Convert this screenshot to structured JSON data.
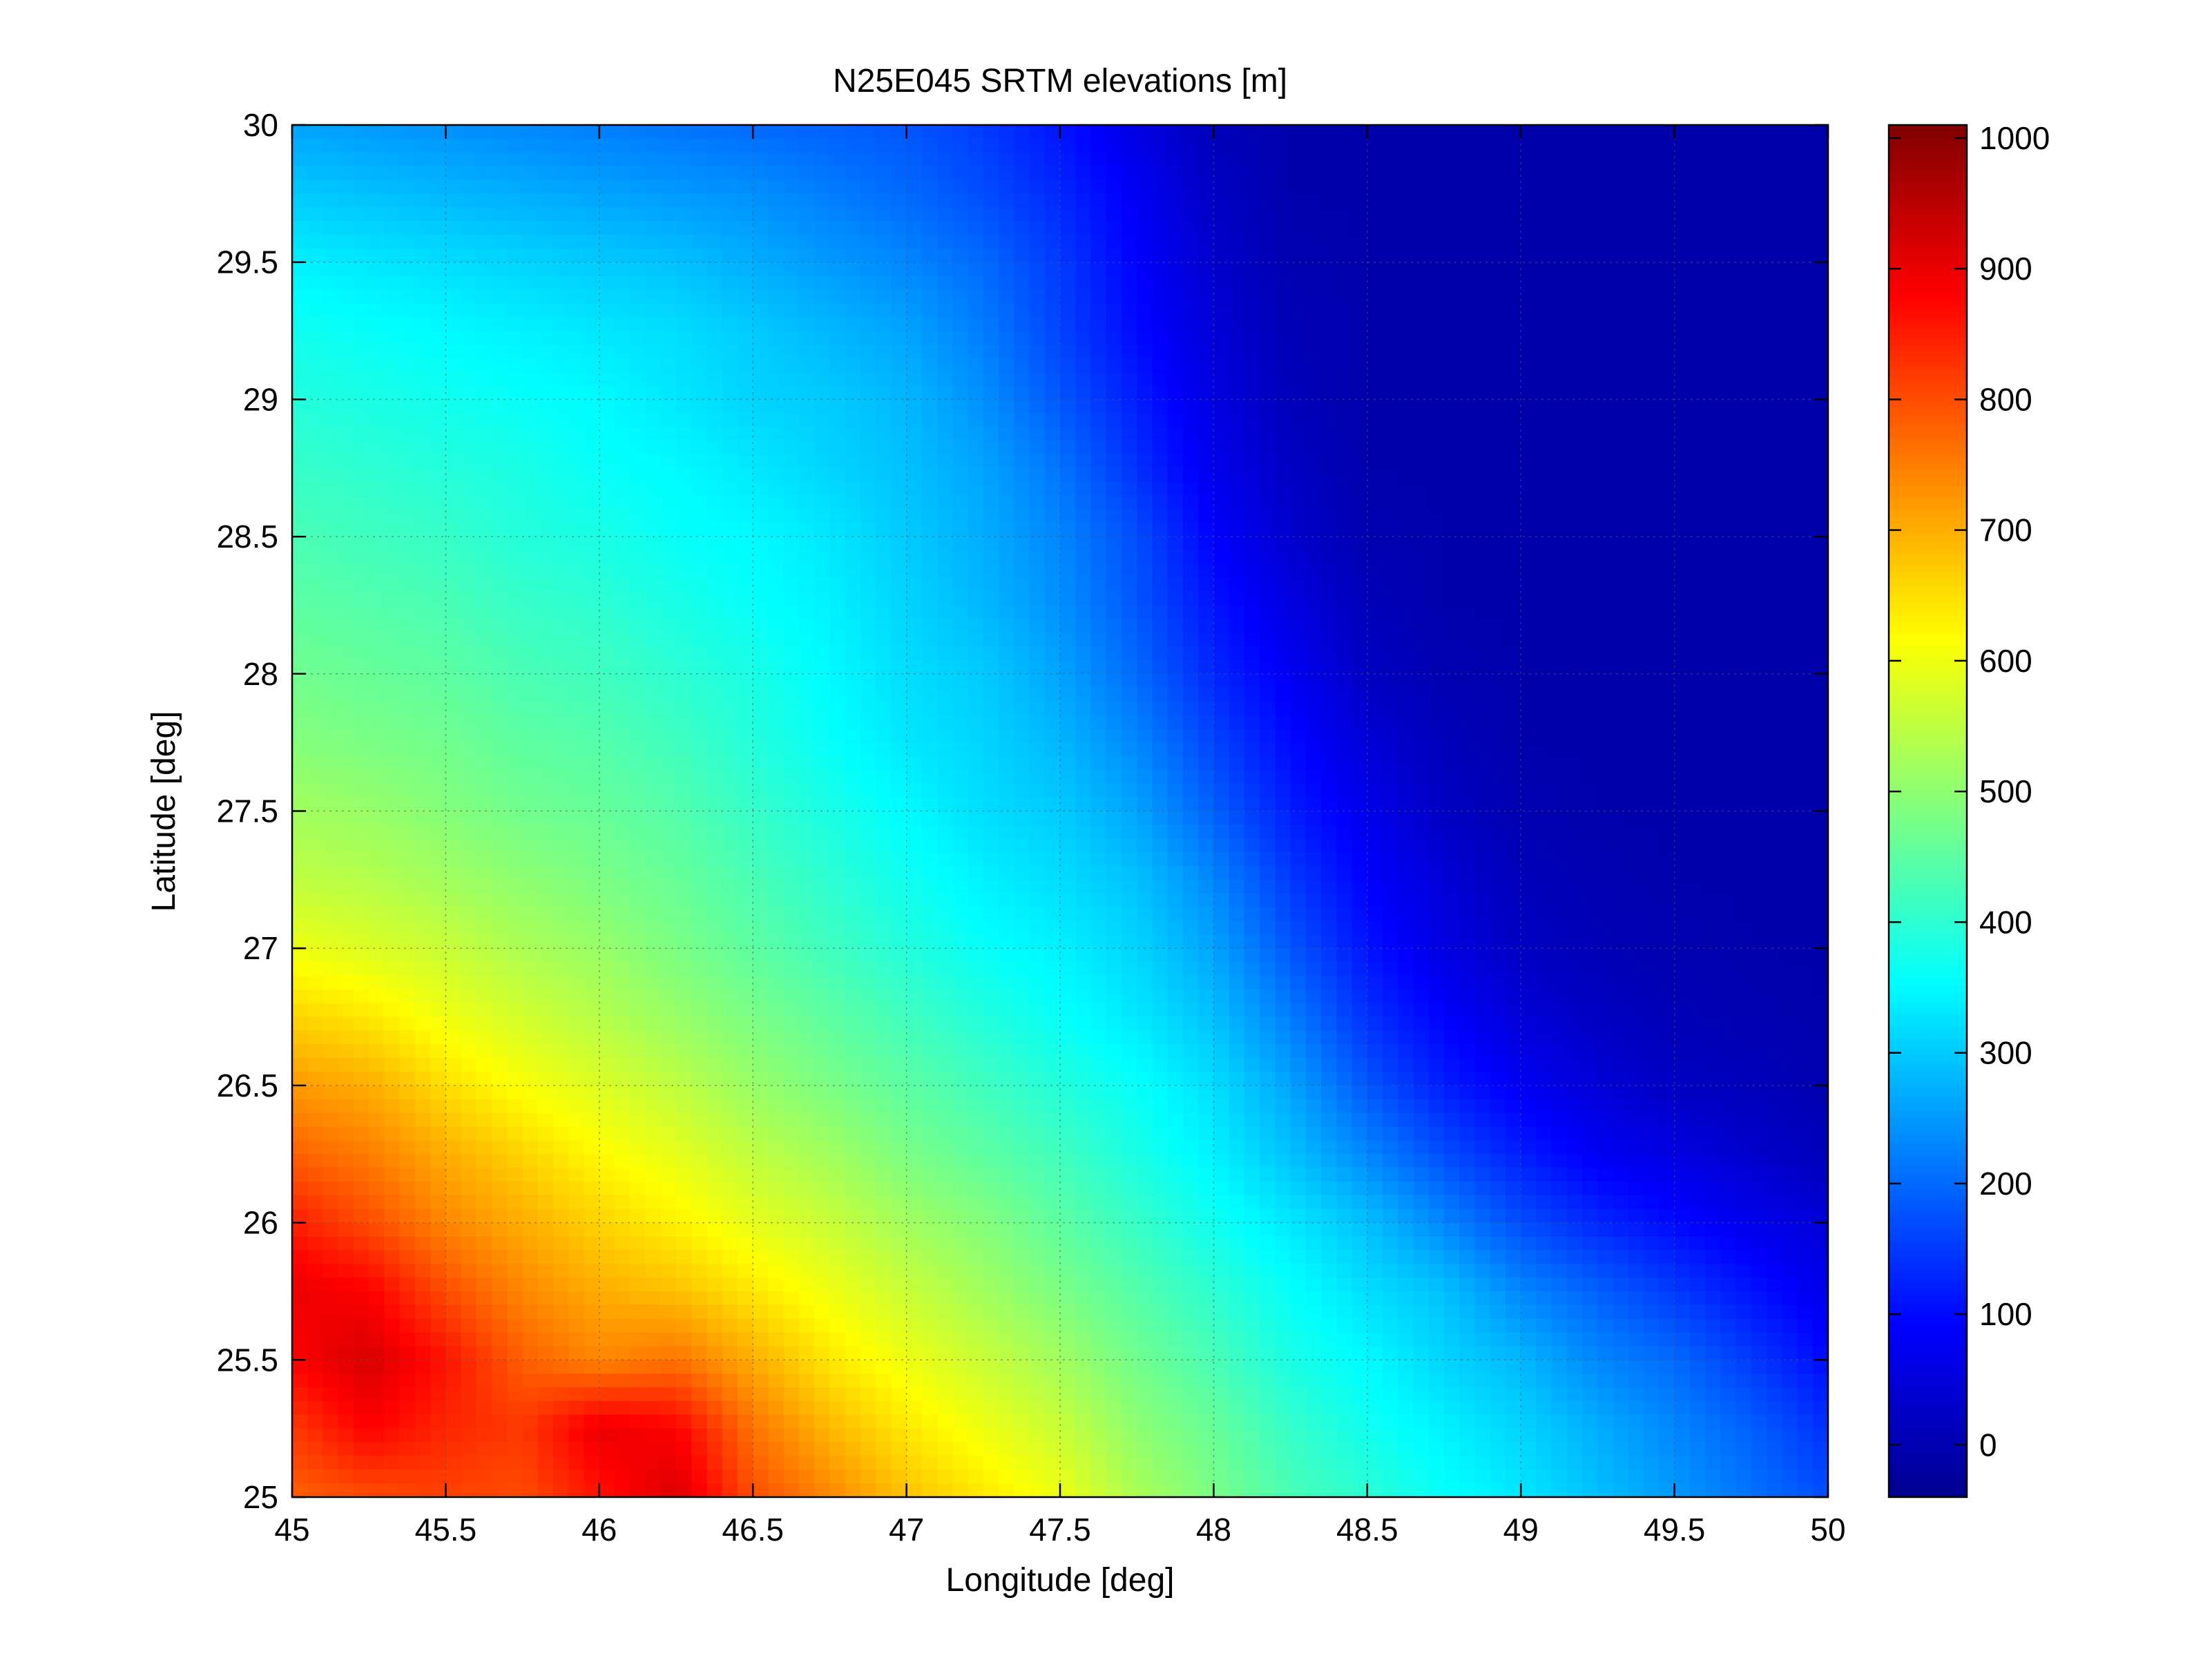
{
  "chart_data": {
    "type": "heatmap",
    "title": "N25E045 SRTM elevations [m]",
    "xlabel": "Longitude [deg]",
    "ylabel": "Latitude [deg]",
    "xlim": [
      45,
      50
    ],
    "ylim": [
      25,
      30
    ],
    "xticks": [
      "45",
      "45.5",
      "46",
      "46.5",
      "47",
      "47.5",
      "48",
      "48.5",
      "49",
      "49.5",
      "50"
    ],
    "yticks": [
      "25",
      "25.5",
      "26",
      "26.5",
      "27",
      "27.5",
      "28",
      "28.5",
      "29",
      "29.5",
      "30"
    ],
    "grid": true,
    "colormap": "jet",
    "colorbar": {
      "clim": [
        -40,
        1010
      ],
      "ticks": [
        "0",
        "100",
        "200",
        "300",
        "400",
        "500",
        "600",
        "700",
        "800",
        "900",
        "1000"
      ]
    },
    "lon": [
      45,
      45.25,
      45.5,
      45.75,
      46,
      46.25,
      46.5,
      46.75,
      47,
      47.25,
      47.5,
      47.75,
      48,
      48.25,
      48.5,
      48.75,
      49,
      49.25,
      49.5,
      49.75,
      50
    ],
    "lat": [
      30,
      29.75,
      29.5,
      29.25,
      29,
      28.75,
      28.5,
      28.25,
      28,
      27.75,
      27.5,
      27.25,
      27,
      26.75,
      26.5,
      26.25,
      26,
      25.75,
      25.5,
      25.25,
      25
    ],
    "elevation": [
      [
        260,
        250,
        240,
        230,
        220,
        210,
        200,
        190,
        180,
        150,
        110,
        60,
        20,
        5,
        5,
        5,
        5,
        5,
        5,
        5,
        5
      ],
      [
        300,
        290,
        280,
        270,
        260,
        250,
        240,
        220,
        200,
        170,
        130,
        80,
        30,
        5,
        5,
        5,
        5,
        5,
        5,
        5,
        5
      ],
      [
        340,
        330,
        320,
        310,
        300,
        290,
        270,
        250,
        230,
        200,
        150,
        90,
        40,
        10,
        5,
        5,
        5,
        5,
        5,
        5,
        5
      ],
      [
        370,
        360,
        350,
        340,
        330,
        320,
        300,
        280,
        260,
        220,
        160,
        100,
        50,
        15,
        5,
        5,
        5,
        5,
        5,
        5,
        5
      ],
      [
        390,
        380,
        370,
        360,
        350,
        330,
        310,
        300,
        280,
        240,
        180,
        120,
        60,
        20,
        5,
        5,
        5,
        5,
        5,
        5,
        5
      ],
      [
        410,
        400,
        390,
        380,
        360,
        350,
        330,
        310,
        290,
        260,
        210,
        140,
        70,
        30,
        5,
        5,
        5,
        5,
        5,
        5,
        5
      ],
      [
        430,
        420,
        410,
        390,
        380,
        360,
        350,
        330,
        300,
        270,
        230,
        170,
        90,
        40,
        10,
        5,
        5,
        5,
        5,
        5,
        5
      ],
      [
        450,
        440,
        430,
        410,
        400,
        380,
        360,
        340,
        310,
        280,
        240,
        180,
        110,
        60,
        20,
        5,
        5,
        5,
        5,
        5,
        5
      ],
      [
        470,
        460,
        450,
        430,
        420,
        400,
        380,
        350,
        320,
        300,
        260,
        200,
        130,
        80,
        30,
        10,
        5,
        5,
        5,
        5,
        5
      ],
      [
        490,
        480,
        470,
        450,
        440,
        420,
        390,
        360,
        330,
        310,
        280,
        230,
        160,
        100,
        50,
        20,
        5,
        5,
        5,
        5,
        5
      ],
      [
        520,
        510,
        490,
        470,
        460,
        440,
        410,
        380,
        350,
        320,
        300,
        260,
        190,
        120,
        70,
        30,
        10,
        5,
        5,
        5,
        5
      ],
      [
        550,
        540,
        520,
        500,
        480,
        460,
        430,
        400,
        370,
        340,
        320,
        290,
        230,
        150,
        90,
        50,
        20,
        10,
        5,
        5,
        5
      ],
      [
        600,
        580,
        560,
        530,
        510,
        480,
        450,
        420,
        390,
        360,
        340,
        310,
        260,
        180,
        110,
        60,
        30,
        15,
        10,
        5,
        5
      ],
      [
        660,
        640,
        600,
        570,
        540,
        510,
        480,
        450,
        420,
        390,
        360,
        330,
        290,
        220,
        140,
        90,
        50,
        30,
        15,
        10,
        5
      ],
      [
        720,
        700,
        650,
        610,
        580,
        550,
        510,
        480,
        450,
        420,
        390,
        360,
        320,
        260,
        180,
        120,
        80,
        50,
        30,
        20,
        10
      ],
      [
        780,
        750,
        700,
        660,
        620,
        590,
        550,
        520,
        480,
        450,
        420,
        380,
        340,
        290,
        230,
        170,
        120,
        80,
        60,
        40,
        20
      ],
      [
        850,
        800,
        740,
        700,
        660,
        630,
        590,
        560,
        520,
        490,
        450,
        410,
        370,
        330,
        290,
        230,
        170,
        130,
        100,
        70,
        50
      ],
      [
        900,
        880,
        800,
        740,
        700,
        680,
        640,
        600,
        560,
        520,
        480,
        440,
        400,
        360,
        320,
        290,
        230,
        190,
        150,
        110,
        70
      ],
      [
        880,
        920,
        860,
        780,
        740,
        760,
        700,
        640,
        600,
        560,
        520,
        470,
        430,
        380,
        350,
        310,
        280,
        230,
        200,
        150,
        100
      ],
      [
        820,
        880,
        840,
        820,
        900,
        880,
        760,
        690,
        640,
        600,
        560,
        500,
        460,
        410,
        370,
        340,
        310,
        270,
        230,
        190,
        140
      ],
      [
        780,
        800,
        810,
        800,
        860,
        920,
        800,
        740,
        680,
        640,
        600,
        530,
        480,
        430,
        400,
        360,
        330,
        290,
        250,
        210,
        170
      ]
    ]
  }
}
